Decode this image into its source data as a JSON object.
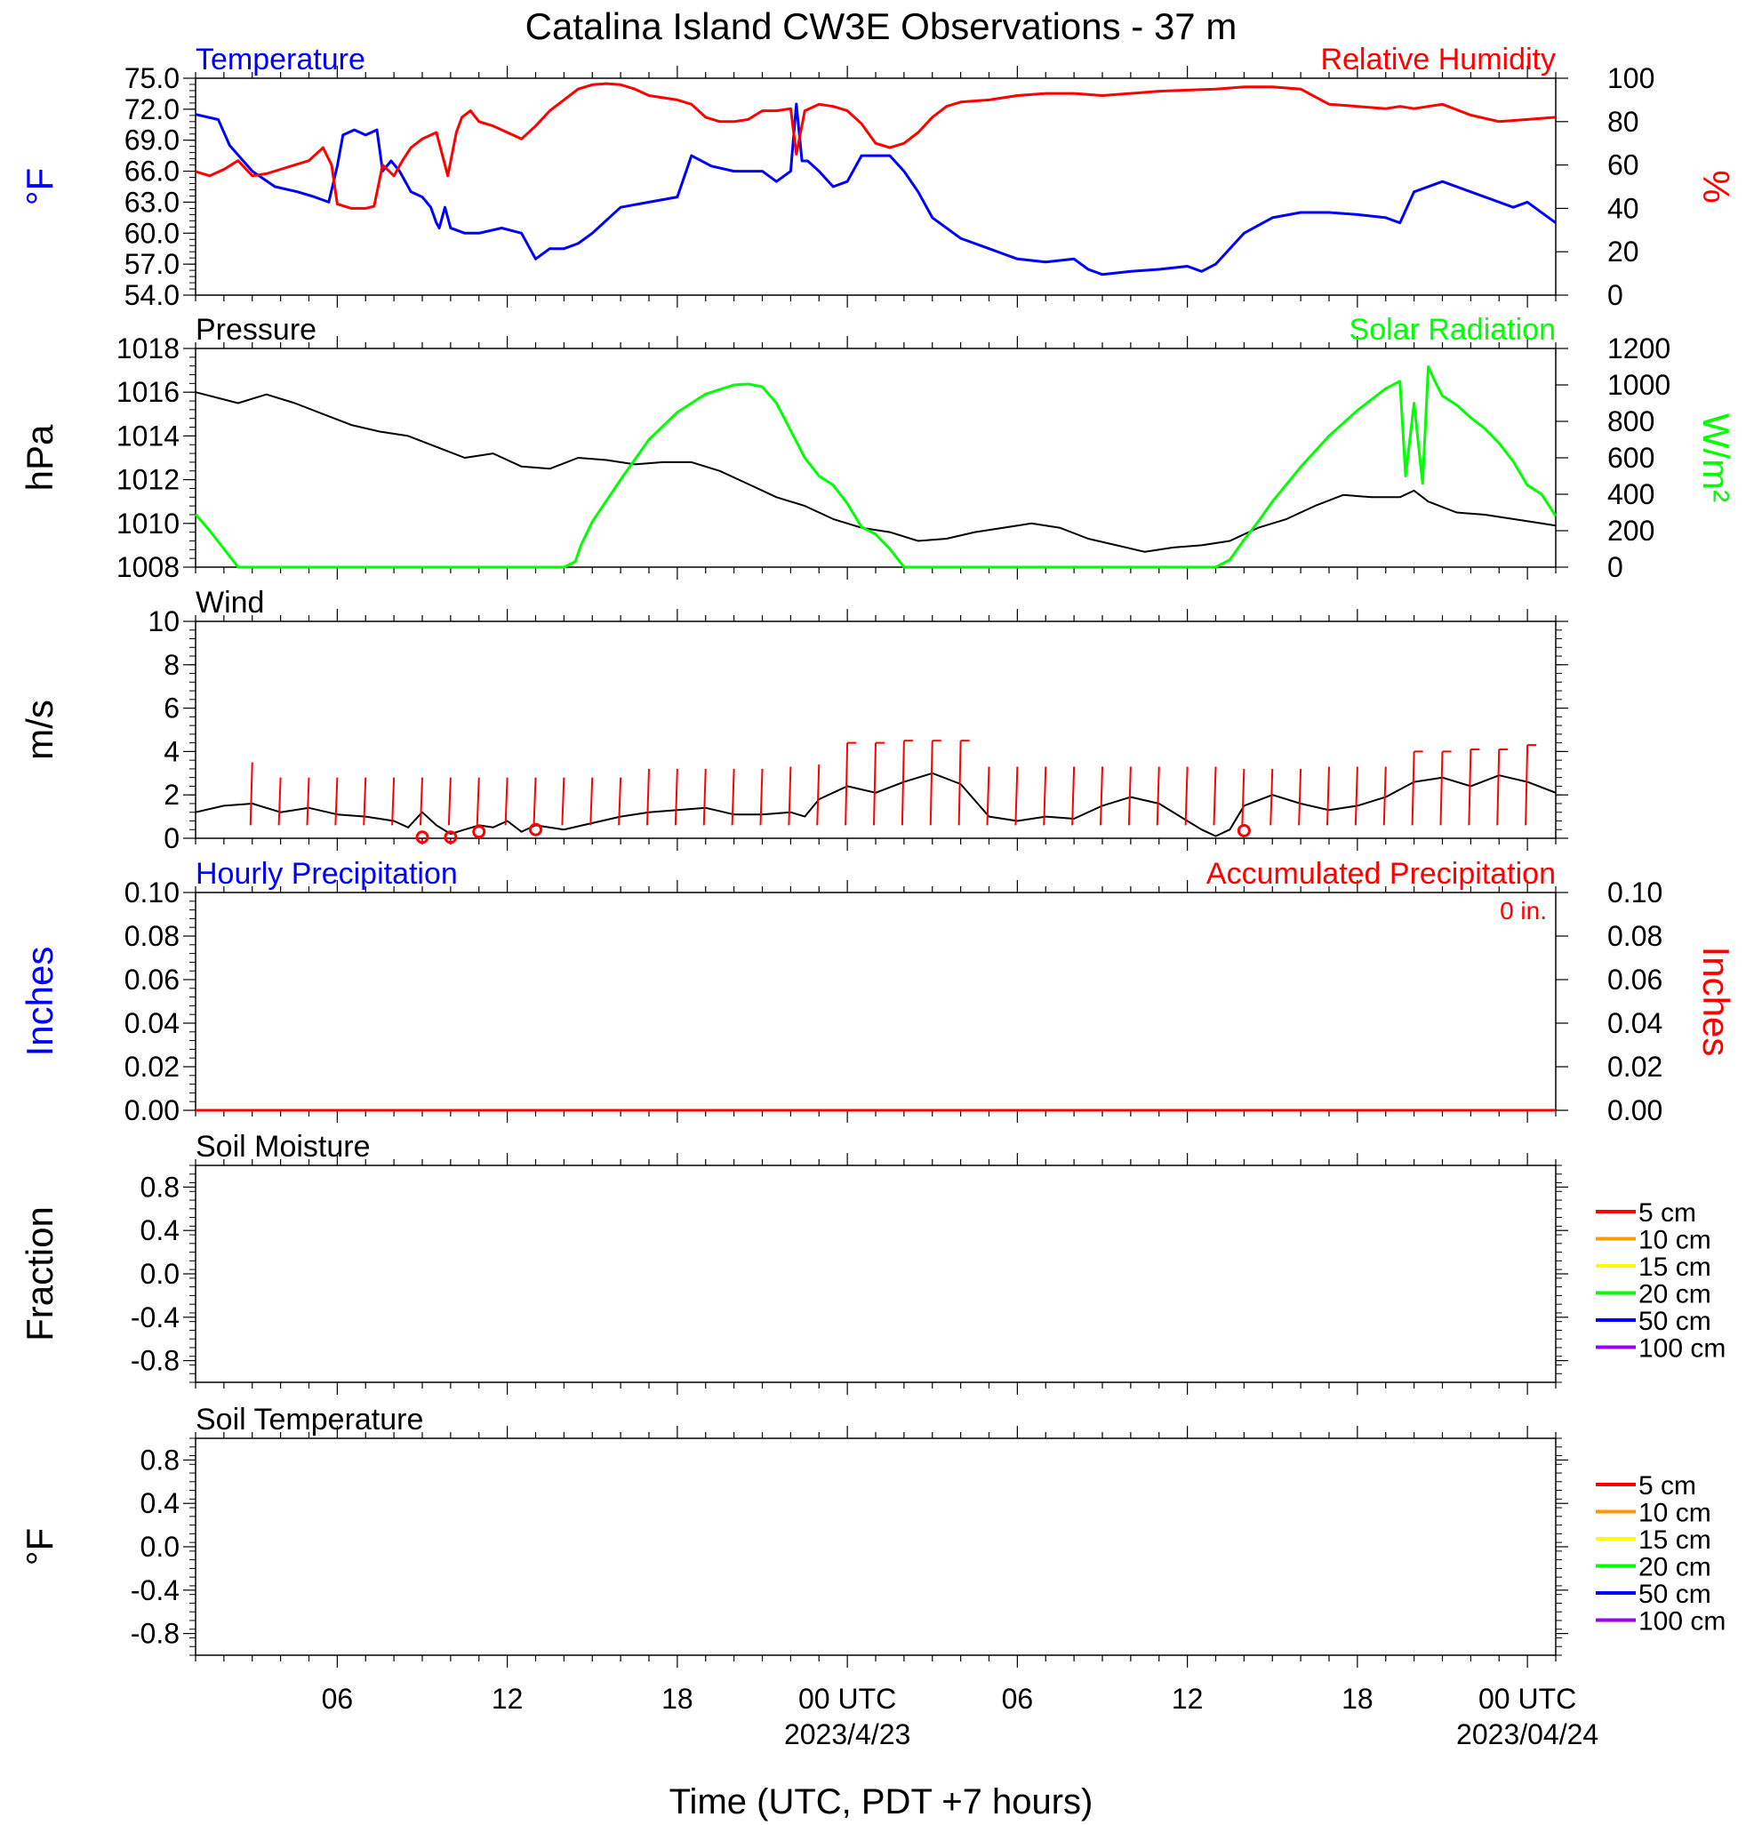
{
  "page": {
    "title": "Catalina Island CW3E Observations - 37 m",
    "xlabel": "Time (UTC, PDT +7 hours)"
  },
  "colors": {
    "temperature": "#0000ff",
    "humidity": "#ff0000",
    "pressure": "#000000",
    "solar": "#00ff00",
    "wind": "#000000",
    "wind_barb": "#ff0000",
    "precip_hourly": "#0000ff",
    "precip_accum": "#ff0000"
  },
  "time_axis": {
    "range_hours": [
      0,
      48
    ],
    "ticks": [
      {
        "h": 5,
        "label": "06",
        "sub": ""
      },
      {
        "h": 11,
        "label": "12",
        "sub": ""
      },
      {
        "h": 17,
        "label": "18",
        "sub": ""
      },
      {
        "h": 23,
        "label": "00 UTC",
        "sub": "2023/4/23"
      },
      {
        "h": 29,
        "label": "06",
        "sub": ""
      },
      {
        "h": 35,
        "label": "12",
        "sub": ""
      },
      {
        "h": 41,
        "label": "18",
        "sub": ""
      },
      {
        "h": 47,
        "label": "00 UTC",
        "sub": "2023/04/24"
      }
    ]
  },
  "chart_data": [
    {
      "id": "temp_rh",
      "type": "line",
      "title_left": "Temperature",
      "title_right": "Relative Humidity",
      "ylabel_left": "°F",
      "ylabel_right": "%",
      "ylim_left": [
        54,
        75
      ],
      "ylim_right": [
        0,
        100
      ],
      "yticks_left": [
        "54.0",
        "57.0",
        "60.0",
        "63.0",
        "66.0",
        "69.0",
        "72.0",
        "75.0"
      ],
      "yticks_right": [
        "0",
        "20",
        "40",
        "60",
        "80",
        "100"
      ],
      "series": [
        {
          "name": "Temperature",
          "axis": "left",
          "x": [
            0,
            0.8,
            1.2,
            2.0,
            2.8,
            3.6,
            4.2,
            4.7,
            5.0,
            5.2,
            5.6,
            6.0,
            6.4,
            6.6,
            6.9,
            7.2,
            7.6,
            8.0,
            8.3,
            8.5,
            8.6,
            8.8,
            9.0,
            9.5,
            10,
            10.8,
            11.5,
            11.8,
            12.0,
            12.5,
            13.0,
            13.5,
            14.0,
            15.0,
            16.0,
            17.0,
            17.5,
            18.2,
            19.0,
            20.0,
            20.5,
            21.0,
            21.2,
            21.4,
            21.6,
            22.0,
            22.5,
            23.0,
            23.5,
            24.0,
            24.5,
            25.0,
            25.5,
            26.0,
            27.0,
            28.0,
            28.5,
            29.0,
            30.0,
            31.0,
            31.5,
            32.0,
            33.0,
            34.0,
            35.0,
            35.5,
            36.0,
            36.5,
            37.0,
            38.0,
            39.0,
            40.0,
            41.0,
            42.0,
            42.5,
            43.0,
            44.0,
            45.0,
            46.0,
            46.5,
            47.0,
            48.0
          ],
          "y": [
            71.5,
            71.0,
            68.5,
            66.0,
            64.5,
            64.0,
            63.5,
            63.0,
            66.5,
            69.5,
            70.0,
            69.5,
            70.0,
            66.0,
            67.0,
            66.0,
            64.0,
            63.5,
            62.5,
            61.0,
            60.5,
            62.5,
            60.5,
            60.0,
            60.0,
            60.5,
            60.0,
            58.5,
            57.5,
            58.5,
            58.5,
            59.0,
            60.0,
            62.5,
            63.0,
            63.5,
            67.5,
            66.5,
            66.0,
            66.0,
            65.0,
            66.0,
            72.5,
            67.0,
            67.0,
            66.0,
            64.5,
            65.0,
            67.5,
            67.5,
            67.5,
            66.0,
            64.0,
            61.5,
            59.5,
            58.5,
            58.0,
            57.5,
            57.2,
            57.5,
            56.5,
            56.0,
            56.3,
            56.5,
            56.8,
            56.3,
            57.0,
            58.5,
            60.0,
            61.5,
            62.0,
            62.0,
            61.8,
            61.5,
            61.0,
            64.0,
            65.0,
            64.0,
            63.0,
            62.5,
            63.0,
            61.0
          ]
        },
        {
          "name": "Relative Humidity",
          "axis": "right",
          "x": [
            0,
            0.5,
            1.0,
            1.5,
            2.0,
            2.5,
            3.0,
            3.5,
            4.0,
            4.5,
            4.8,
            5.0,
            5.5,
            6.0,
            6.3,
            6.6,
            7.0,
            7.3,
            7.6,
            8.0,
            8.5,
            8.9,
            9.2,
            9.4,
            9.7,
            10,
            10.5,
            11.0,
            11.5,
            12.0,
            12.5,
            13.0,
            13.5,
            14.0,
            14.5,
            15.0,
            15.5,
            16.0,
            17.0,
            17.5,
            18.0,
            18.5,
            19.0,
            19.5,
            20.0,
            20.5,
            21.0,
            21.2,
            21.5,
            22.0,
            22.5,
            23.0,
            23.5,
            24.0,
            24.5,
            25.0,
            25.5,
            26.0,
            26.5,
            27.0,
            28.0,
            29.0,
            30.0,
            31.0,
            32.0,
            33.0,
            34.0,
            35.0,
            36.0,
            37.0,
            38.0,
            39.0,
            40.0,
            41.0,
            42.0,
            42.5,
            43.0,
            43.5,
            44.0,
            45.0,
            46.0,
            47.0,
            48.0
          ],
          "y": [
            57,
            55,
            58,
            62,
            55,
            56,
            58,
            60,
            62,
            68,
            60,
            42,
            40,
            40,
            41,
            60,
            55,
            62,
            68,
            72,
            75,
            55,
            75,
            82,
            85,
            80,
            78,
            75,
            72,
            78,
            85,
            90,
            95,
            97,
            97.5,
            97,
            95,
            92,
            90,
            88,
            82,
            80,
            80,
            81,
            85,
            85,
            86,
            65,
            85,
            88,
            87,
            85,
            79,
            70,
            68,
            70,
            75,
            82,
            87,
            89,
            90,
            92,
            93,
            93,
            92,
            93,
            94,
            94.5,
            95,
            96,
            96,
            95,
            88,
            87,
            86,
            87,
            86,
            87,
            88,
            83,
            80,
            81,
            82
          ]
        }
      ]
    },
    {
      "id": "pressure_solar",
      "type": "line",
      "title_left": "Pressure",
      "title_right": "Solar Radiation",
      "ylabel_left": "hPa",
      "ylabel_right": "W/m²",
      "ylim_left": [
        1008,
        1018
      ],
      "ylim_right": [
        0,
        1200
      ],
      "yticks_left": [
        "1008",
        "1010",
        "1012",
        "1014",
        "1016",
        "1018"
      ],
      "yticks_right": [
        "0",
        "200",
        "400",
        "600",
        "800",
        "1000",
        "1200"
      ],
      "series": [
        {
          "name": "Pressure",
          "axis": "left",
          "x": [
            0,
            1.5,
            2.5,
            3.5,
            4.5,
            5.5,
            6.5,
            7.5,
            8.5,
            9.5,
            10.5,
            11.5,
            12.5,
            13.5,
            14.5,
            15.5,
            16.5,
            17.5,
            18.5,
            19.5,
            20.5,
            21.5,
            22.5,
            23.5,
            24.5,
            25.5,
            26.5,
            27.5,
            28.5,
            29.5,
            30.5,
            31.5,
            32.5,
            33.5,
            34.5,
            35.5,
            36.5,
            37.5,
            38.5,
            39.5,
            40.5,
            41.5,
            42.5,
            43.0,
            43.5,
            44.5,
            45.5,
            46.5,
            47.5,
            48.0
          ],
          "y": [
            1016.0,
            1015.5,
            1015.9,
            1015.5,
            1015.0,
            1014.5,
            1014.2,
            1014.0,
            1013.5,
            1013.0,
            1013.2,
            1012.6,
            1012.5,
            1013.0,
            1012.9,
            1012.7,
            1012.8,
            1012.8,
            1012.4,
            1011.8,
            1011.2,
            1010.8,
            1010.2,
            1009.8,
            1009.6,
            1009.2,
            1009.3,
            1009.6,
            1009.8,
            1010.0,
            1009.8,
            1009.3,
            1009.0,
            1008.7,
            1008.9,
            1009.0,
            1009.2,
            1009.8,
            1010.2,
            1010.8,
            1011.3,
            1011.2,
            1011.2,
            1011.5,
            1011.0,
            1010.5,
            1010.4,
            1010.2,
            1010.0,
            1009.9
          ]
        },
        {
          "name": "Solar Radiation",
          "axis": "right",
          "x": [
            0,
            0.5,
            1.0,
            1.5,
            12.0,
            13.0,
            13.4,
            13.6,
            14.0,
            15.0,
            16.0,
            17.0,
            18.0,
            19.0,
            19.5,
            20.0,
            20.5,
            21.0,
            21.5,
            22.0,
            22.5,
            23.0,
            23.5,
            24.0,
            24.5,
            25.0,
            25.5,
            36.0,
            36.5,
            37.0,
            37.5,
            38.0,
            39.0,
            40.0,
            41.0,
            42.0,
            42.5,
            42.7,
            43.0,
            43.3,
            43.5,
            43.8,
            44.0,
            44.5,
            45.0,
            45.5,
            46.0,
            46.5,
            47.0,
            47.5,
            48.0
          ],
          "y": [
            290,
            200,
            100,
            0,
            0,
            0,
            30,
            120,
            250,
            480,
            700,
            850,
            950,
            1000,
            1005,
            990,
            900,
            750,
            600,
            500,
            450,
            350,
            220,
            180,
            100,
            0,
            0,
            0,
            40,
            150,
            250,
            360,
            550,
            720,
            860,
            980,
            1020,
            500,
            900,
            460,
            1100,
            1000,
            940,
            890,
            820,
            760,
            680,
            580,
            450,
            400,
            280
          ]
        }
      ]
    },
    {
      "id": "wind",
      "type": "line",
      "title_left": "Wind",
      "ylabel_left": "m/s",
      "ylim_left": [
        0,
        10
      ],
      "yticks_left": [
        "0",
        "2",
        "4",
        "6",
        "8",
        "10"
      ],
      "series": [
        {
          "name": "Wind",
          "axis": "left",
          "x": [
            0,
            1.0,
            2.0,
            3.0,
            4.0,
            5.0,
            6.0,
            7.0,
            7.5,
            8.0,
            8.5,
            9.0,
            9.5,
            10.0,
            10.5,
            11.0,
            11.5,
            12.0,
            13.0,
            14.0,
            15.0,
            16.0,
            17.0,
            18.0,
            19.0,
            20.0,
            21.0,
            21.5,
            22.0,
            23.0,
            24.0,
            25.0,
            26.0,
            27.0,
            28.0,
            29.0,
            30.0,
            31.0,
            32.0,
            33.0,
            34.0,
            35.0,
            35.5,
            36.0,
            36.5,
            37.0,
            38.0,
            39.0,
            40.0,
            41.0,
            42.0,
            43.0,
            44.0,
            45.0,
            46.0,
            47.0,
            48.0
          ],
          "y": [
            1.2,
            1.5,
            1.6,
            1.2,
            1.4,
            1.1,
            1.0,
            0.8,
            0.5,
            1.2,
            0.6,
            0.2,
            0.4,
            0.6,
            0.5,
            0.8,
            0.3,
            0.6,
            0.4,
            0.7,
            1.0,
            1.2,
            1.3,
            1.4,
            1.1,
            1.1,
            1.2,
            1.0,
            1.8,
            2.4,
            2.1,
            2.6,
            3.0,
            2.5,
            1.0,
            0.8,
            1.0,
            0.9,
            1.5,
            1.9,
            1.6,
            0.8,
            0.4,
            0.1,
            0.4,
            1.5,
            2.0,
            1.6,
            1.3,
            1.5,
            1.9,
            2.6,
            2.8,
            2.4,
            2.9,
            2.6,
            2.1
          ]
        }
      ],
      "barbs": {
        "x": [
          2,
          3,
          4,
          5,
          6,
          7,
          8,
          9,
          10,
          11,
          12,
          13,
          14,
          15,
          16,
          17,
          18,
          19,
          20,
          21,
          22,
          23,
          24,
          25,
          26,
          27,
          28,
          29,
          30,
          31,
          32,
          33,
          34,
          35,
          36,
          37,
          38,
          39,
          40,
          41,
          42,
          43,
          44,
          45,
          46,
          47
        ],
        "y": [
          3.5,
          2.8,
          2.8,
          2.8,
          2.8,
          2.8,
          2.8,
          2.8,
          2.8,
          2.8,
          2.8,
          2.8,
          2.8,
          2.8,
          3.2,
          3.2,
          3.2,
          3.2,
          3.2,
          3.3,
          3.4,
          4.4,
          4.4,
          4.5,
          4.5,
          4.5,
          3.3,
          3.3,
          3.3,
          3.3,
          3.3,
          3.3,
          3.3,
          3.3,
          3.3,
          3.2,
          3.2,
          3.2,
          3.3,
          3.3,
          3.3,
          4.0,
          4.0,
          4.1,
          4.1,
          4.3
        ],
        "flagged": [
          false,
          false,
          false,
          false,
          false,
          false,
          false,
          false,
          false,
          false,
          false,
          false,
          false,
          false,
          false,
          false,
          false,
          false,
          false,
          false,
          false,
          true,
          true,
          true,
          true,
          true,
          false,
          false,
          false,
          false,
          false,
          false,
          false,
          false,
          false,
          false,
          false,
          false,
          false,
          false,
          false,
          true,
          true,
          true,
          true,
          true
        ]
      },
      "calm_markers": {
        "x": [
          8.0,
          9.0,
          10.0,
          12.0,
          37.0
        ],
        "y": [
          0.05,
          0.05,
          0.3,
          0.4,
          0.35
        ]
      }
    },
    {
      "id": "precip",
      "type": "line",
      "title_left": "Hourly Precipitation",
      "title_right": "Accumulated Precipitation",
      "annotation": "0 in.",
      "ylabel_left": "Inches",
      "ylabel_right": "Inches",
      "ylim_left": [
        0,
        0.1
      ],
      "ylim_right": [
        0,
        0.1
      ],
      "yticks_left": [
        "0.00",
        "0.02",
        "0.04",
        "0.06",
        "0.08",
        "0.10"
      ],
      "yticks_right": [
        "0.00",
        "0.02",
        "0.04",
        "0.06",
        "0.08",
        "0.10"
      ],
      "series": [
        {
          "name": "Hourly Precipitation",
          "axis": "left",
          "x": [
            0,
            48
          ],
          "y": [
            0,
            0
          ]
        },
        {
          "name": "Accumulated Precipitation",
          "axis": "right",
          "x": [
            0,
            48
          ],
          "y": [
            0,
            0
          ]
        }
      ]
    },
    {
      "id": "soil_moisture",
      "type": "line",
      "title_left": "Soil Moisture",
      "ylabel_left": "Fraction",
      "ylim_left": [
        -1,
        1
      ],
      "yticks_left": [
        "-0.8",
        "-0.4",
        "0.0",
        "0.4",
        "0.8"
      ],
      "legend": [
        "5 cm",
        "10 cm",
        "15 cm",
        "20 cm",
        "50 cm",
        "100 cm"
      ],
      "legend_colors": [
        "#ff0000",
        "#ff9900",
        "#ffff00",
        "#00ff00",
        "#0000ff",
        "#9900ff"
      ],
      "series": []
    },
    {
      "id": "soil_temperature",
      "type": "line",
      "title_left": "Soil Temperature",
      "ylabel_left": "°F",
      "ylim_left": [
        -1,
        1
      ],
      "yticks_left": [
        "-0.8",
        "-0.4",
        "0.0",
        "0.4",
        "0.8"
      ],
      "legend": [
        "5 cm",
        "10 cm",
        "15 cm",
        "20 cm",
        "50 cm",
        "100 cm"
      ],
      "legend_colors": [
        "#ff0000",
        "#ff9900",
        "#ffff00",
        "#00ff00",
        "#0000ff",
        "#9900ff"
      ],
      "series": []
    }
  ]
}
